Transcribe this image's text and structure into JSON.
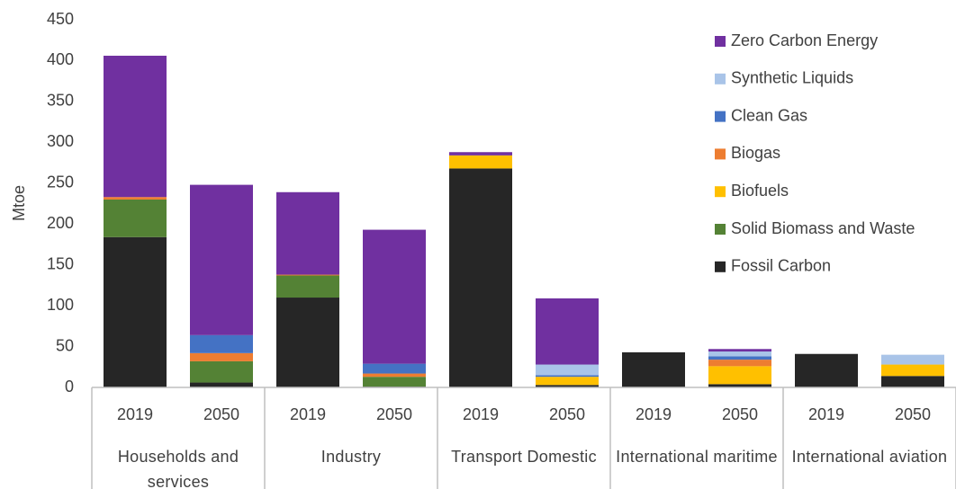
{
  "chart_data": {
    "type": "stacked_bar",
    "y_label": "Mtoe",
    "categories": [
      "2019",
      "2050",
      "2019",
      "2050",
      "2019",
      "2050",
      "2019",
      "2050",
      "2019",
      "2050"
    ],
    "groups": [
      "Households and services",
      "Industry",
      "Transport Domestic",
      "International maritime",
      "International aviation"
    ],
    "series": [
      {
        "name": "Fossil Carbon",
        "color": "#262626",
        "values": [
          184,
          6,
          110,
          1,
          268,
          3,
          43,
          4,
          41,
          14
        ]
      },
      {
        "name": "Solid Biomass and Waste",
        "color": "#548235",
        "values": [
          46,
          26,
          27,
          12,
          0,
          0,
          0,
          0,
          0,
          0
        ]
      },
      {
        "name": "Biofuels",
        "color": "#ffc000",
        "values": [
          0,
          0,
          0,
          0,
          16,
          10,
          0,
          22,
          0,
          14
        ]
      },
      {
        "name": "Biogas",
        "color": "#ed7d31",
        "values": [
          3,
          10,
          1,
          4,
          0,
          0,
          0,
          8,
          0,
          0
        ]
      },
      {
        "name": "Clean Gas",
        "color": "#4472c4",
        "values": [
          0,
          22,
          0,
          12,
          0,
          2,
          0,
          4,
          0,
          0
        ]
      },
      {
        "name": "Synthetic Liquids",
        "color": "#a9c4e8",
        "values": [
          0,
          0,
          0,
          0,
          0,
          13,
          0,
          6,
          0,
          12
        ]
      },
      {
        "name": "Zero Carbon Energy",
        "color": "#7030a0",
        "values": [
          173,
          184,
          101,
          164,
          4,
          81,
          0,
          3,
          0,
          0
        ]
      }
    ],
    "ylim": [
      0,
      450
    ],
    "yticks": [
      0,
      50,
      100,
      150,
      200,
      250,
      300,
      350,
      400,
      450
    ],
    "grid": false,
    "legend": "top-right"
  }
}
